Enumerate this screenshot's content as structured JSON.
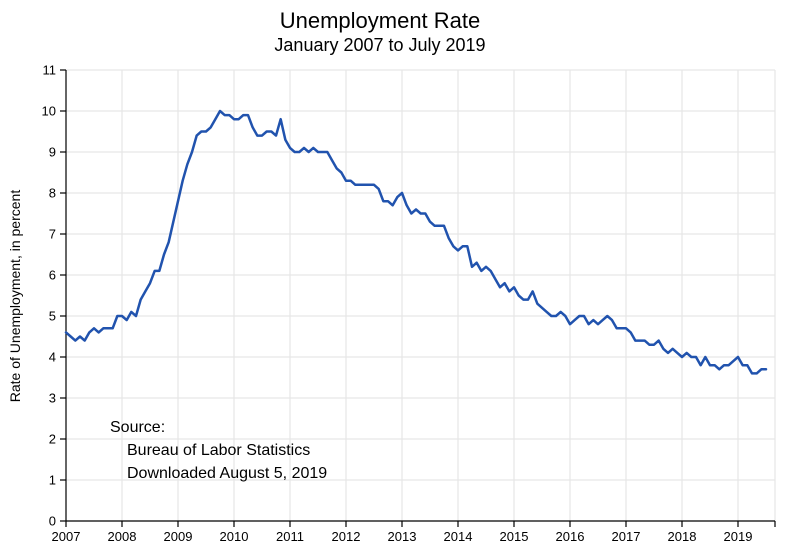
{
  "source": {
    "line1": "Source:",
    "line2": "Bureau of Labor Statistics",
    "line3": "Downloaded August 5, 2019"
  },
  "chart_data": {
    "type": "line",
    "title": "Unemployment Rate",
    "subtitle": "January 2007 to July 2019",
    "xlabel": "",
    "ylabel": "Rate of Unemployment, in percent",
    "x_start": "2007-01",
    "x_end": "2019-07",
    "x_frequency": "monthly",
    "x_tick_labels": [
      "2007",
      "2008",
      "2009",
      "2010",
      "2011",
      "2012",
      "2013",
      "2014",
      "2015",
      "2016",
      "2017",
      "2018",
      "2019"
    ],
    "y_ticks": [
      0,
      1,
      2,
      3,
      4,
      5,
      6,
      7,
      8,
      9,
      10,
      11
    ],
    "ylim": [
      0,
      11
    ],
    "grid": true,
    "legend": false,
    "line_color": "#2153ae",
    "grid_color": "#e7e7e7",
    "axis_color": "#000000",
    "series": [
      {
        "name": "Unemployment rate, percent",
        "values": [
          4.6,
          4.5,
          4.4,
          4.5,
          4.4,
          4.6,
          4.7,
          4.6,
          4.7,
          4.7,
          4.7,
          5.0,
          5.0,
          4.9,
          5.1,
          5.0,
          5.4,
          5.6,
          5.8,
          6.1,
          6.1,
          6.5,
          6.8,
          7.3,
          7.8,
          8.3,
          8.7,
          9.0,
          9.4,
          9.5,
          9.5,
          9.6,
          9.8,
          10.0,
          9.9,
          9.9,
          9.8,
          9.8,
          9.9,
          9.9,
          9.6,
          9.4,
          9.4,
          9.5,
          9.5,
          9.4,
          9.8,
          9.3,
          9.1,
          9.0,
          9.0,
          9.1,
          9.0,
          9.1,
          9.0,
          9.0,
          9.0,
          8.8,
          8.6,
          8.5,
          8.3,
          8.3,
          8.2,
          8.2,
          8.2,
          8.2,
          8.2,
          8.1,
          7.8,
          7.8,
          7.7,
          7.9,
          8.0,
          7.7,
          7.5,
          7.6,
          7.5,
          7.5,
          7.3,
          7.2,
          7.2,
          7.2,
          6.9,
          6.7,
          6.6,
          6.7,
          6.7,
          6.2,
          6.3,
          6.1,
          6.2,
          6.1,
          5.9,
          5.7,
          5.8,
          5.6,
          5.7,
          5.5,
          5.4,
          5.4,
          5.6,
          5.3,
          5.2,
          5.1,
          5.0,
          5.0,
          5.1,
          5.0,
          4.8,
          4.9,
          5.0,
          5.0,
          4.8,
          4.9,
          4.8,
          4.9,
          5.0,
          4.9,
          4.7,
          4.7,
          4.7,
          4.6,
          4.4,
          4.4,
          4.4,
          4.3,
          4.3,
          4.4,
          4.2,
          4.1,
          4.2,
          4.1,
          4.0,
          4.1,
          4.0,
          4.0,
          3.8,
          4.0,
          3.8,
          3.8,
          3.7,
          3.8,
          3.8,
          3.9,
          4.0,
          3.8,
          3.8,
          3.6,
          3.6,
          3.7,
          3.7
        ]
      }
    ]
  }
}
